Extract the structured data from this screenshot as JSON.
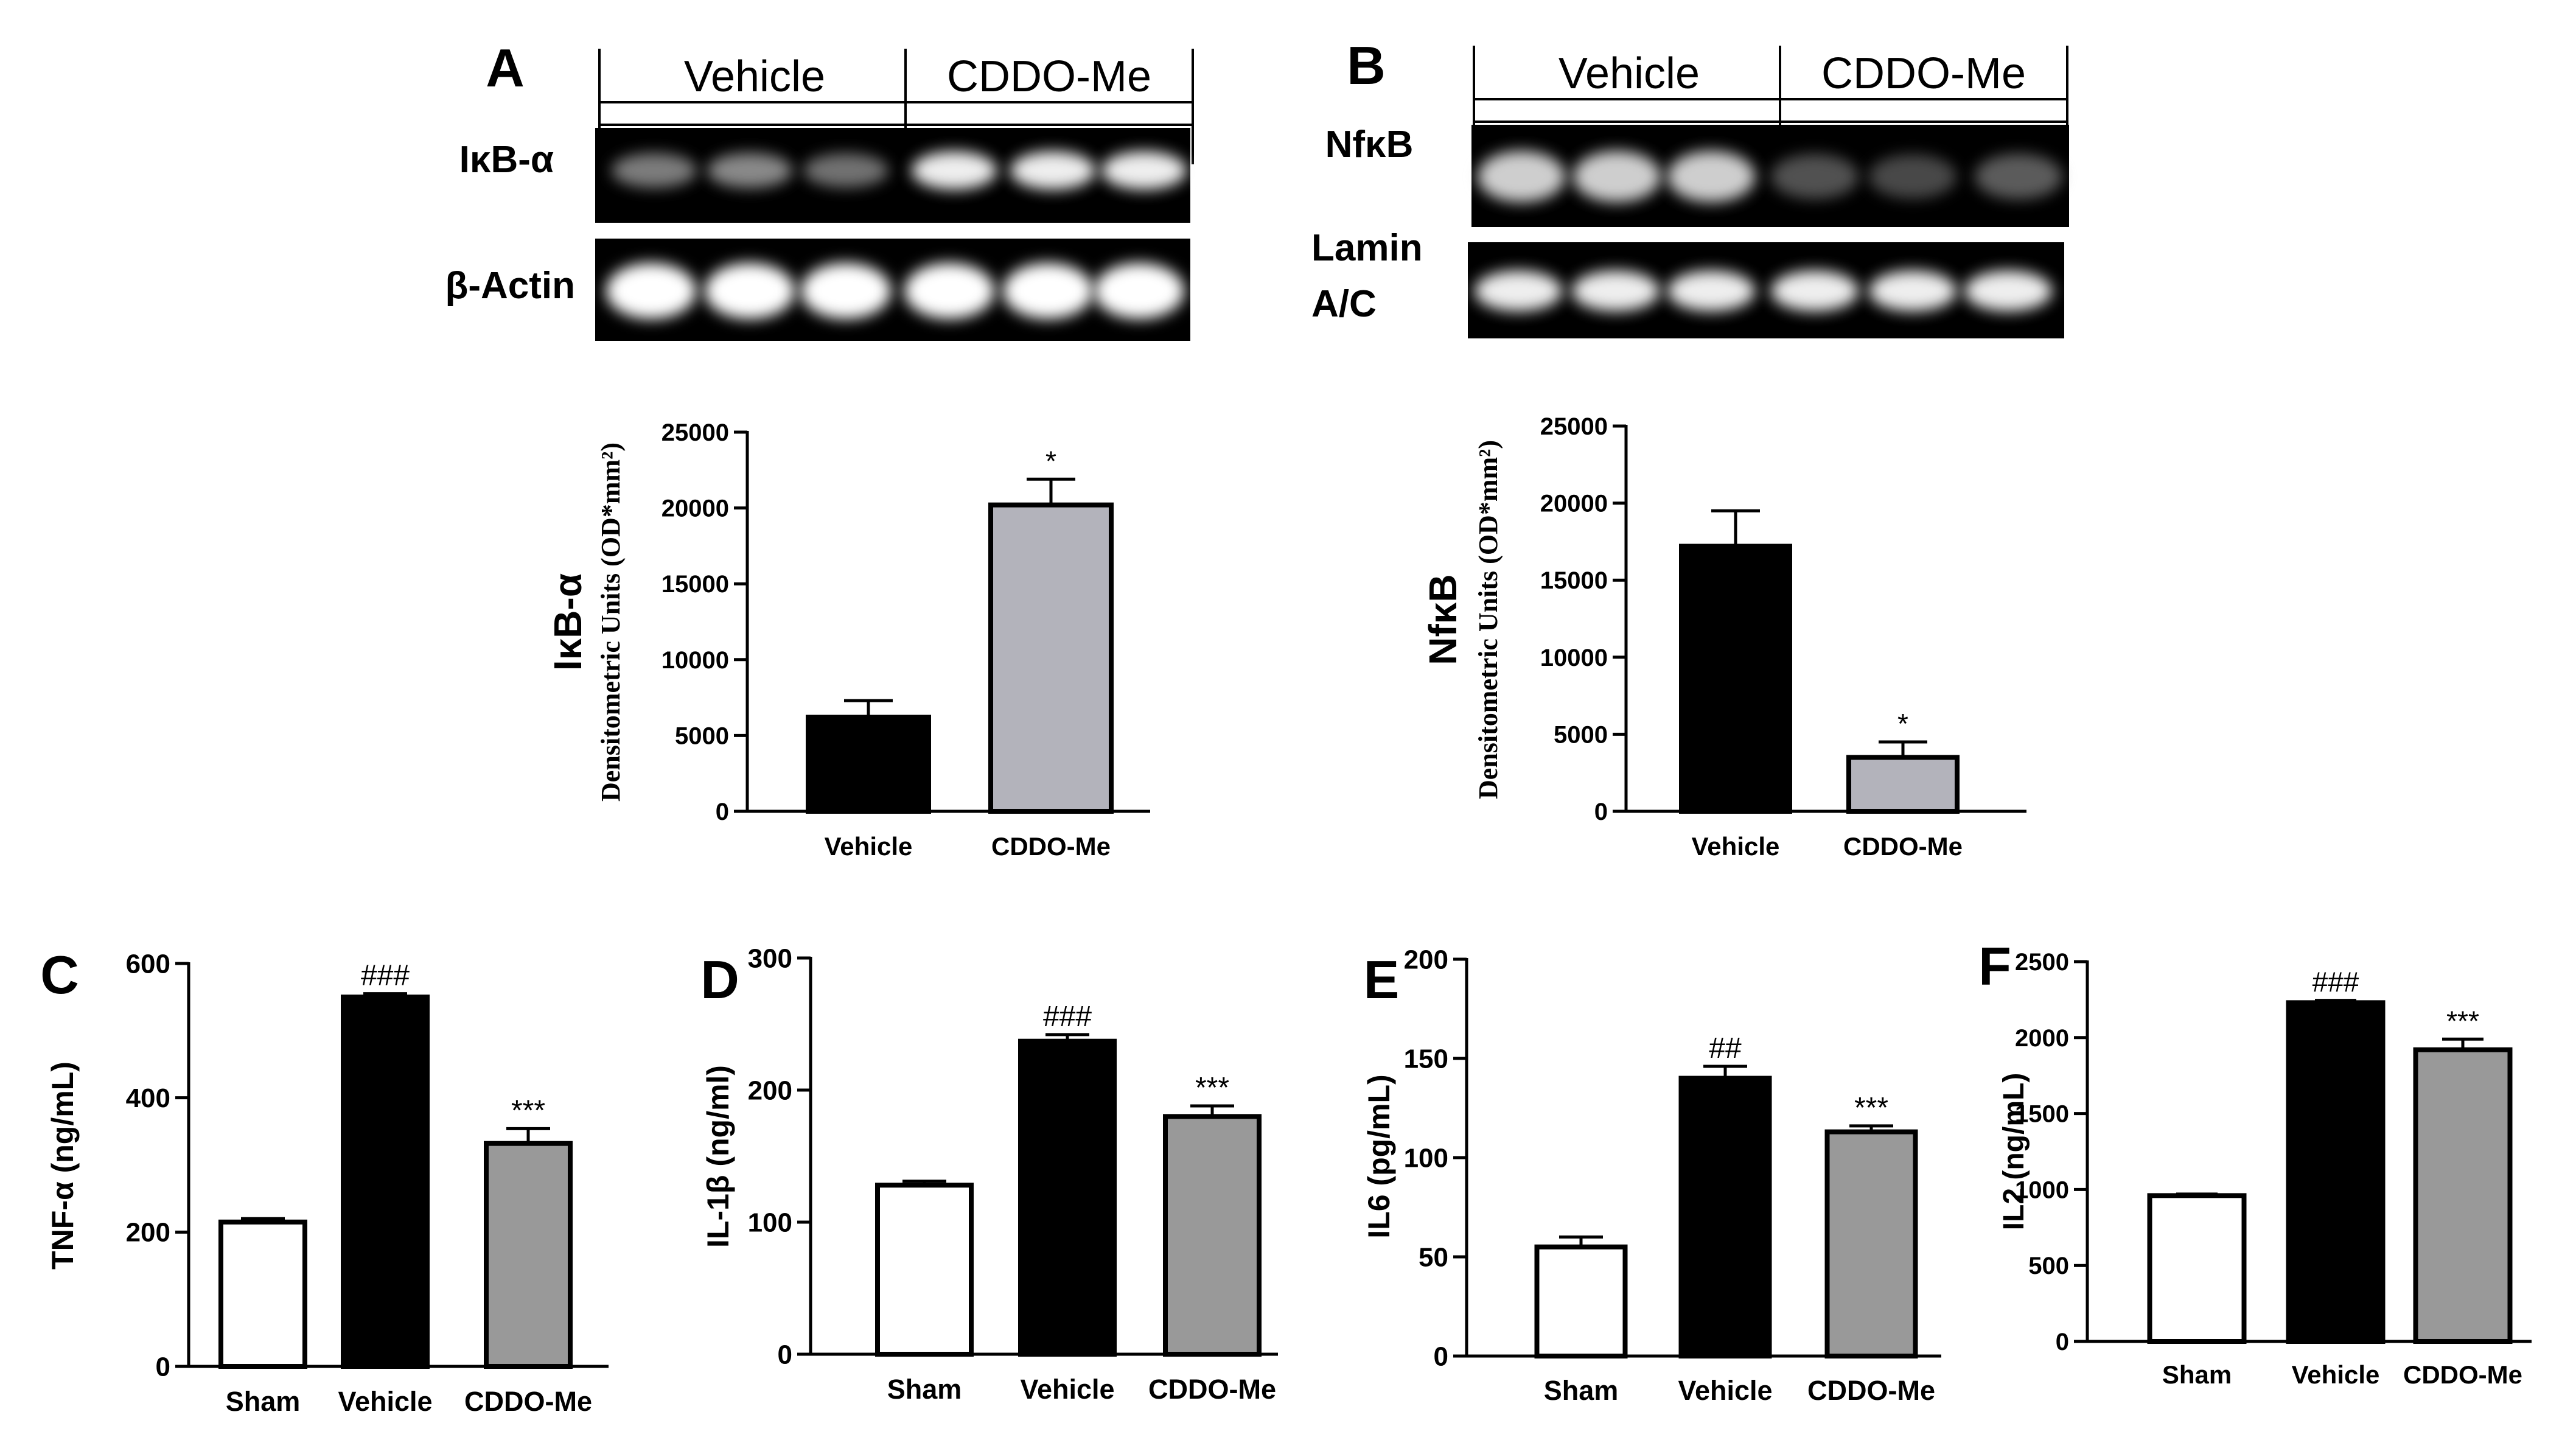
{
  "panels": {
    "A": {
      "letter": "A",
      "groups": [
        "Vehicle",
        "CDDO-Me"
      ],
      "blots": [
        {
          "label": "IκB-α",
          "intensity": [
            0.55,
            0.6,
            0.5,
            0.95,
            0.95,
            0.95
          ]
        },
        {
          "label": "β-Actin",
          "intensity": [
            1,
            1,
            1,
            1,
            1,
            1
          ]
        }
      ]
    },
    "B": {
      "letter": "B",
      "groups": [
        "Vehicle",
        "CDDO-Me"
      ],
      "blots": [
        {
          "label": "NfκB",
          "intensity": [
            0.85,
            0.85,
            0.85,
            0.35,
            0.3,
            0.4
          ]
        },
        {
          "label": "Lamin A/C",
          "label_lines": [
            "Lamin",
            "A/C"
          ],
          "intensity": [
            0.95,
            0.95,
            0.95,
            0.95,
            0.95,
            0.95
          ]
        }
      ]
    },
    "C": {
      "letter": "C"
    },
    "D": {
      "letter": "D"
    },
    "E": {
      "letter": "E"
    },
    "F": {
      "letter": "F"
    }
  },
  "colors": {
    "black_bar": "#000000",
    "light_gray_bar": "#b3b3bb",
    "gray_bar": "#999999",
    "white_bar": "#ffffff"
  },
  "chart_data": [
    {
      "id": "A",
      "type": "bar",
      "categories": [
        "Vehicle",
        "CDDO-Me"
      ],
      "values": [
        6200,
        20200
      ],
      "errors": [
        1100,
        1700
      ],
      "sig": [
        "",
        "*"
      ],
      "fills": [
        "#000000",
        "#b3b3bb"
      ],
      "ylabel_main": "IκB-α",
      "ylabel": "Densitometric Units (OD*mm²)",
      "ylim": [
        0,
        25000
      ],
      "yticks": [
        "0",
        "5000",
        "10000",
        "15000",
        "20000",
        "25000"
      ],
      "ytick_values": [
        0,
        5000,
        10000,
        15000,
        20000,
        25000
      ]
    },
    {
      "id": "B",
      "type": "bar",
      "categories": [
        "Vehicle",
        "CDDO-Me"
      ],
      "values": [
        17200,
        3500
      ],
      "errors": [
        2300,
        1000
      ],
      "sig": [
        "",
        "*"
      ],
      "fills": [
        "#000000",
        "#b3b3bb"
      ],
      "ylabel_main": "NfκB",
      "ylabel": "Densitometric Units (OD*mm²)",
      "ylim": [
        0,
        25000
      ],
      "yticks": [
        "0",
        "5000",
        "10000",
        "15000",
        "20000",
        "25000"
      ],
      "ytick_values": [
        0,
        5000,
        10000,
        15000,
        20000,
        25000
      ]
    },
    {
      "id": "C",
      "type": "bar",
      "categories": [
        "Sham",
        "Vehicle",
        "CDDO-Me"
      ],
      "values": [
        215,
        550,
        332
      ],
      "errors": [
        5,
        5,
        22
      ],
      "sig": [
        "",
        "###",
        "***"
      ],
      "fills": [
        "#ffffff",
        "#000000",
        "#999999"
      ],
      "ylabel": "TNF-α (ng/mL)",
      "ylim": [
        0,
        600
      ],
      "yticks": [
        "0",
        "200",
        "400",
        "600"
      ],
      "ytick_values": [
        0,
        200,
        400,
        600
      ]
    },
    {
      "id": "D",
      "type": "bar",
      "categories": [
        "Sham",
        "Vehicle",
        "CDDO-Me"
      ],
      "values": [
        128,
        237,
        180
      ],
      "errors": [
        3,
        5,
        8
      ],
      "sig": [
        "",
        "###",
        "***"
      ],
      "fills": [
        "#ffffff",
        "#000000",
        "#999999"
      ],
      "ylabel": "IL-1β (ng/ml)",
      "ylim": [
        0,
        300
      ],
      "yticks": [
        "0",
        "100",
        "200",
        "300"
      ],
      "ytick_values": [
        0,
        100,
        200,
        300
      ]
    },
    {
      "id": "E",
      "type": "bar",
      "categories": [
        "Sham",
        "Vehicle",
        "CDDO-Me"
      ],
      "values": [
        55,
        140,
        113
      ],
      "errors": [
        5,
        6,
        3
      ],
      "sig": [
        "",
        "##",
        "***"
      ],
      "fills": [
        "#ffffff",
        "#000000",
        "#999999"
      ],
      "ylabel": "IL6 (pg/mL)",
      "ylim": [
        0,
        200
      ],
      "yticks": [
        "0",
        "50",
        "100",
        "150",
        "200"
      ],
      "ytick_values": [
        0,
        50,
        100,
        150,
        200
      ]
    },
    {
      "id": "F",
      "type": "bar",
      "categories": [
        "Sham",
        "Vehicle",
        "CDDO-Me"
      ],
      "values": [
        960,
        2230,
        1920
      ],
      "errors": [
        10,
        15,
        70
      ],
      "sig": [
        "",
        "###",
        "***"
      ],
      "fills": [
        "#ffffff",
        "#000000",
        "#999999"
      ],
      "ylabel": "IL2 (ng/mL)",
      "ylim": [
        0,
        2500
      ],
      "yticks": [
        "0",
        "500",
        "1000",
        "1500",
        "2000",
        "2500"
      ],
      "ytick_values": [
        0,
        500,
        1000,
        1500,
        2000,
        2500
      ]
    }
  ]
}
